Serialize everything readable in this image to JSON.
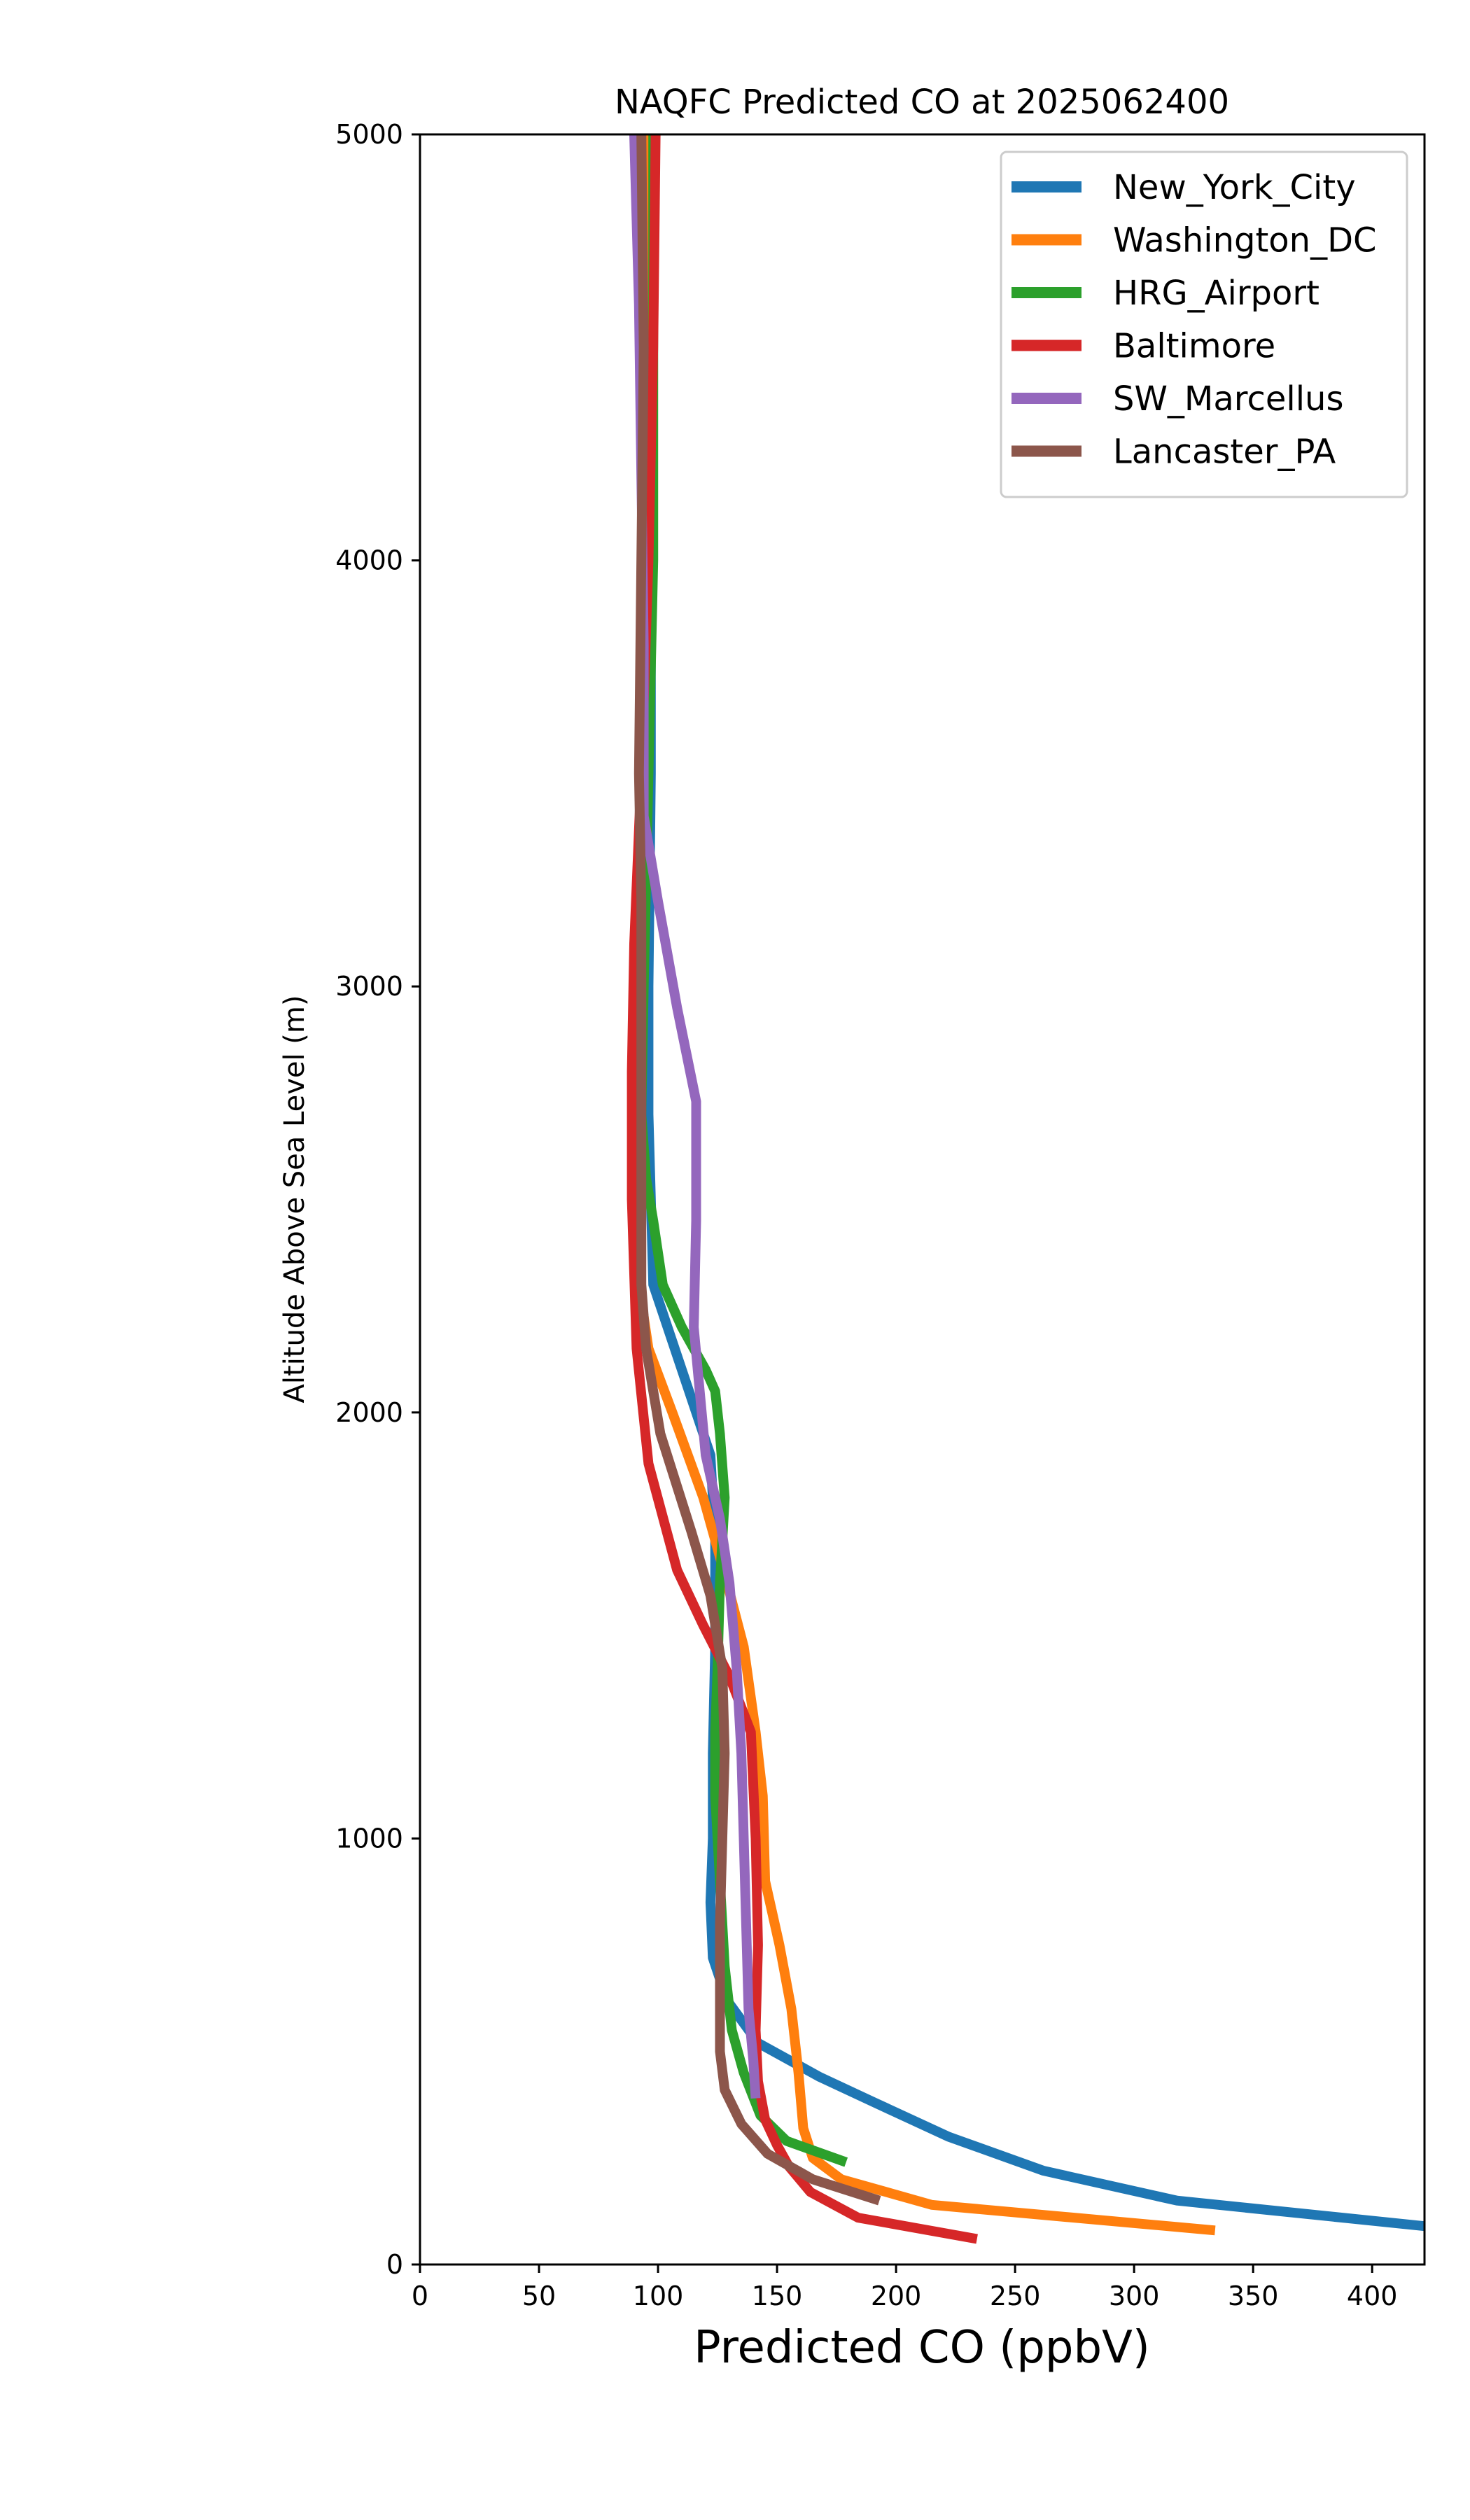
{
  "chart_data": {
    "type": "line",
    "title": "NAQFC Predicted CO at 2025062400",
    "xlabel": "Predicted CO (ppbV)",
    "ylabel": "Altitude Above Sea Level (m)",
    "xlim": [
      0,
      422
    ],
    "ylim": [
      0,
      5000
    ],
    "xticks": [
      0,
      50,
      100,
      150,
      200,
      250,
      300,
      350,
      400
    ],
    "yticks": [
      0,
      1000,
      2000,
      3000,
      4000,
      5000
    ],
    "grid": false,
    "legend_position": "top-right",
    "series": [
      {
        "name": "New_York_City",
        "color": "#1f77b4",
        "points": [
          [
            96,
            5000
          ],
          [
            96,
            4500
          ],
          [
            97,
            4000
          ],
          [
            97,
            3500
          ],
          [
            96,
            3000
          ],
          [
            96,
            2700
          ],
          [
            97,
            2500
          ],
          [
            98,
            2300
          ],
          [
            113,
            2050
          ],
          [
            122,
            1900
          ],
          [
            124,
            1700
          ],
          [
            124,
            1450
          ],
          [
            123,
            1200
          ],
          [
            123,
            1000
          ],
          [
            122,
            850
          ],
          [
            123,
            720
          ],
          [
            129,
            620
          ],
          [
            142,
            520
          ],
          [
            168,
            440
          ],
          [
            191,
            380
          ],
          [
            222,
            300
          ],
          [
            262,
            220
          ],
          [
            318,
            150
          ],
          [
            422,
            90
          ]
        ]
      },
      {
        "name": "Washington_DC",
        "color": "#ff7f0e",
        "points": [
          [
            96,
            5000
          ],
          [
            96,
            4500
          ],
          [
            95,
            4000
          ],
          [
            94,
            3500
          ],
          [
            92,
            3000
          ],
          [
            90,
            2700
          ],
          [
            90,
            2500
          ],
          [
            92,
            2300
          ],
          [
            96,
            2150
          ],
          [
            106,
            2000
          ],
          [
            119,
            1800
          ],
          [
            129,
            1600
          ],
          [
            136,
            1450
          ],
          [
            141,
            1250
          ],
          [
            144,
            1100
          ],
          [
            145,
            900
          ],
          [
            151,
            750
          ],
          [
            156,
            600
          ],
          [
            159,
            450
          ],
          [
            161,
            320
          ],
          [
            165,
            250
          ],
          [
            177,
            200
          ],
          [
            215,
            140
          ],
          [
            334,
            80
          ]
        ]
      },
      {
        "name": "HRG_Airport",
        "color": "#2ca02c",
        "points": [
          [
            98,
            5000
          ],
          [
            98,
            4500
          ],
          [
            98,
            4000
          ],
          [
            96,
            3500
          ],
          [
            94,
            3000
          ],
          [
            93,
            2700
          ],
          [
            95,
            2550
          ],
          [
            98,
            2450
          ],
          [
            102,
            2300
          ],
          [
            110,
            2200
          ],
          [
            120,
            2100
          ],
          [
            124,
            2050
          ],
          [
            126,
            1950
          ],
          [
            128,
            1800
          ],
          [
            126,
            1600
          ],
          [
            125,
            1400
          ],
          [
            124,
            1250
          ],
          [
            124,
            1100
          ],
          [
            126,
            900
          ],
          [
            128,
            700
          ],
          [
            131,
            550
          ],
          [
            136,
            450
          ],
          [
            143,
            350
          ],
          [
            154,
            290
          ],
          [
            179,
            240
          ]
        ]
      },
      {
        "name": "Baltimore",
        "color": "#d62728",
        "points": [
          [
            99,
            5000
          ],
          [
            98,
            4500
          ],
          [
            96,
            4000
          ],
          [
            93,
            3500
          ],
          [
            90,
            3100
          ],
          [
            89,
            2800
          ],
          [
            89,
            2500
          ],
          [
            91,
            2150
          ],
          [
            96,
            1880
          ],
          [
            108,
            1630
          ],
          [
            119,
            1500
          ],
          [
            130,
            1380
          ],
          [
            139,
            1250
          ],
          [
            141,
            1000
          ],
          [
            142,
            750
          ],
          [
            141,
            550
          ],
          [
            142,
            430
          ],
          [
            145,
            340
          ],
          [
            150,
            280
          ],
          [
            155,
            230
          ],
          [
            164,
            170
          ],
          [
            184,
            110
          ],
          [
            234,
            60
          ]
        ]
      },
      {
        "name": "SW_Marcellus",
        "color": "#9467bd",
        "points": [
          [
            90,
            5000
          ],
          [
            92,
            4600
          ],
          [
            93,
            4200
          ],
          [
            94,
            3800
          ],
          [
            94,
            3400
          ],
          [
            100,
            3200
          ],
          [
            108,
            2950
          ],
          [
            116,
            2730
          ],
          [
            116,
            2450
          ],
          [
            115,
            2200
          ],
          [
            120,
            1900
          ],
          [
            126,
            1750
          ],
          [
            130,
            1600
          ],
          [
            133,
            1400
          ],
          [
            135,
            1200
          ],
          [
            136,
            1000
          ],
          [
            137,
            800
          ],
          [
            138,
            600
          ],
          [
            140,
            480
          ],
          [
            141,
            390
          ]
        ]
      },
      {
        "name": "Lancaster_PA",
        "color": "#8c564b",
        "points": [
          [
            93,
            5000
          ],
          [
            94,
            4500
          ],
          [
            93,
            4000
          ],
          [
            92,
            3500
          ],
          [
            93,
            3200
          ],
          [
            93,
            2800
          ],
          [
            93,
            2500
          ],
          [
            93,
            2300
          ],
          [
            95,
            2150
          ],
          [
            101,
            1950
          ],
          [
            114,
            1720
          ],
          [
            122,
            1570
          ],
          [
            127,
            1400
          ],
          [
            128,
            1200
          ],
          [
            127,
            1000
          ],
          [
            126,
            800
          ],
          [
            126,
            620
          ],
          [
            126,
            500
          ],
          [
            128,
            410
          ],
          [
            135,
            330
          ],
          [
            146,
            260
          ],
          [
            165,
            200
          ],
          [
            193,
            150
          ]
        ]
      }
    ]
  }
}
